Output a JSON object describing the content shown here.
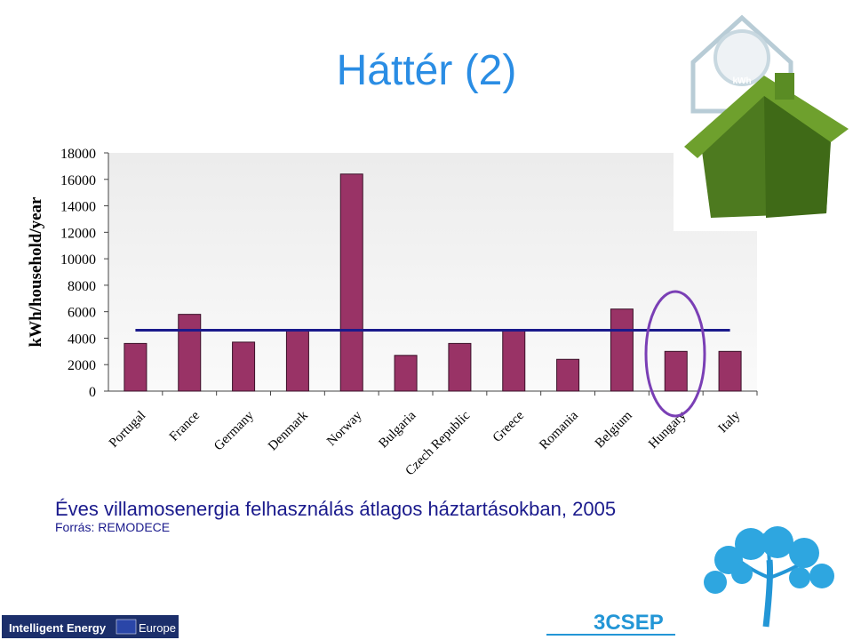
{
  "title": "Háttér (2)",
  "chart_data": {
    "type": "bar",
    "ylabel": "kWh/household/year",
    "categories": [
      "Portugal",
      "France",
      "Germany",
      "Denmark",
      "Norway",
      "Bulgaria",
      "Czech Republic",
      "Greece",
      "Romania",
      "Belgium",
      "Hungary",
      "Italy"
    ],
    "values": [
      3600,
      5800,
      3700,
      4600,
      16400,
      2700,
      3600,
      4600,
      2400,
      6200,
      3000,
      3000
    ],
    "color": "#993366",
    "ylim": [
      0,
      18000
    ],
    "yticks": [
      0,
      2000,
      4000,
      6000,
      8000,
      10000,
      12000,
      14000,
      16000,
      18000
    ],
    "reference_line": {
      "value": 4600,
      "color": "#1a1a8c"
    }
  },
  "caption": "Éves villamosenergia felhasználás átlagos háztartásokban, 2005",
  "source": "Forrás: REMODECE",
  "logos": {
    "meter": "kWh",
    "program": "Intelligent Energy",
    "eu": "Europe",
    "project": "3CSEP"
  }
}
